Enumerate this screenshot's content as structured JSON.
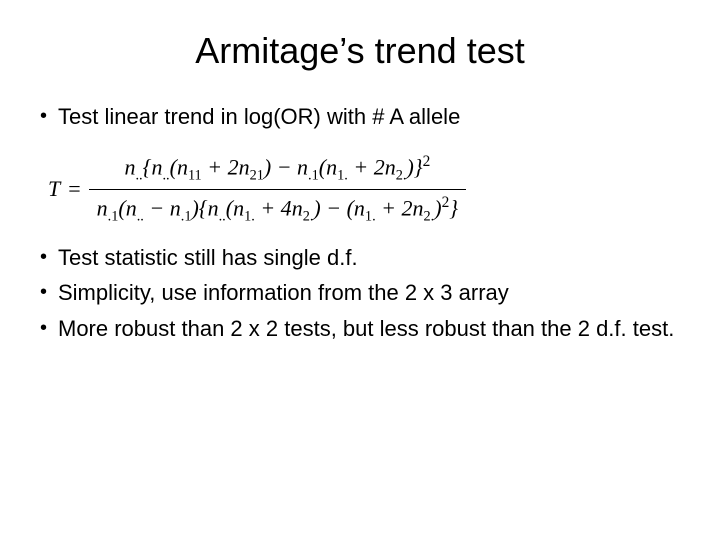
{
  "slide": {
    "title": "Armitage’s trend test",
    "title_fontsize": 36,
    "body_fontsize": 22,
    "text_color": "#000000",
    "background_color": "#ffffff",
    "bullets": {
      "b1": "Test linear trend in log(OR) with # A allele",
      "b2": "Test statistic still has single d.f.",
      "b3": "Simplicity, use information from the 2 x 3 array",
      "b4": "More robust than 2 x 2 tests, but less robust than the 2 d.f. test."
    },
    "formula": {
      "lhs": "T",
      "eq": "=",
      "numerator_plain": "n..{n..(n11 + 2n21) − n.1(n1. + 2n2.)}^2",
      "denominator_plain": "n.1(n.. − n.1){n..(n1. + 4n2.) − (n1. + 2n2.)^2}",
      "font_family": "Times New Roman",
      "font_style": "italic"
    }
  }
}
